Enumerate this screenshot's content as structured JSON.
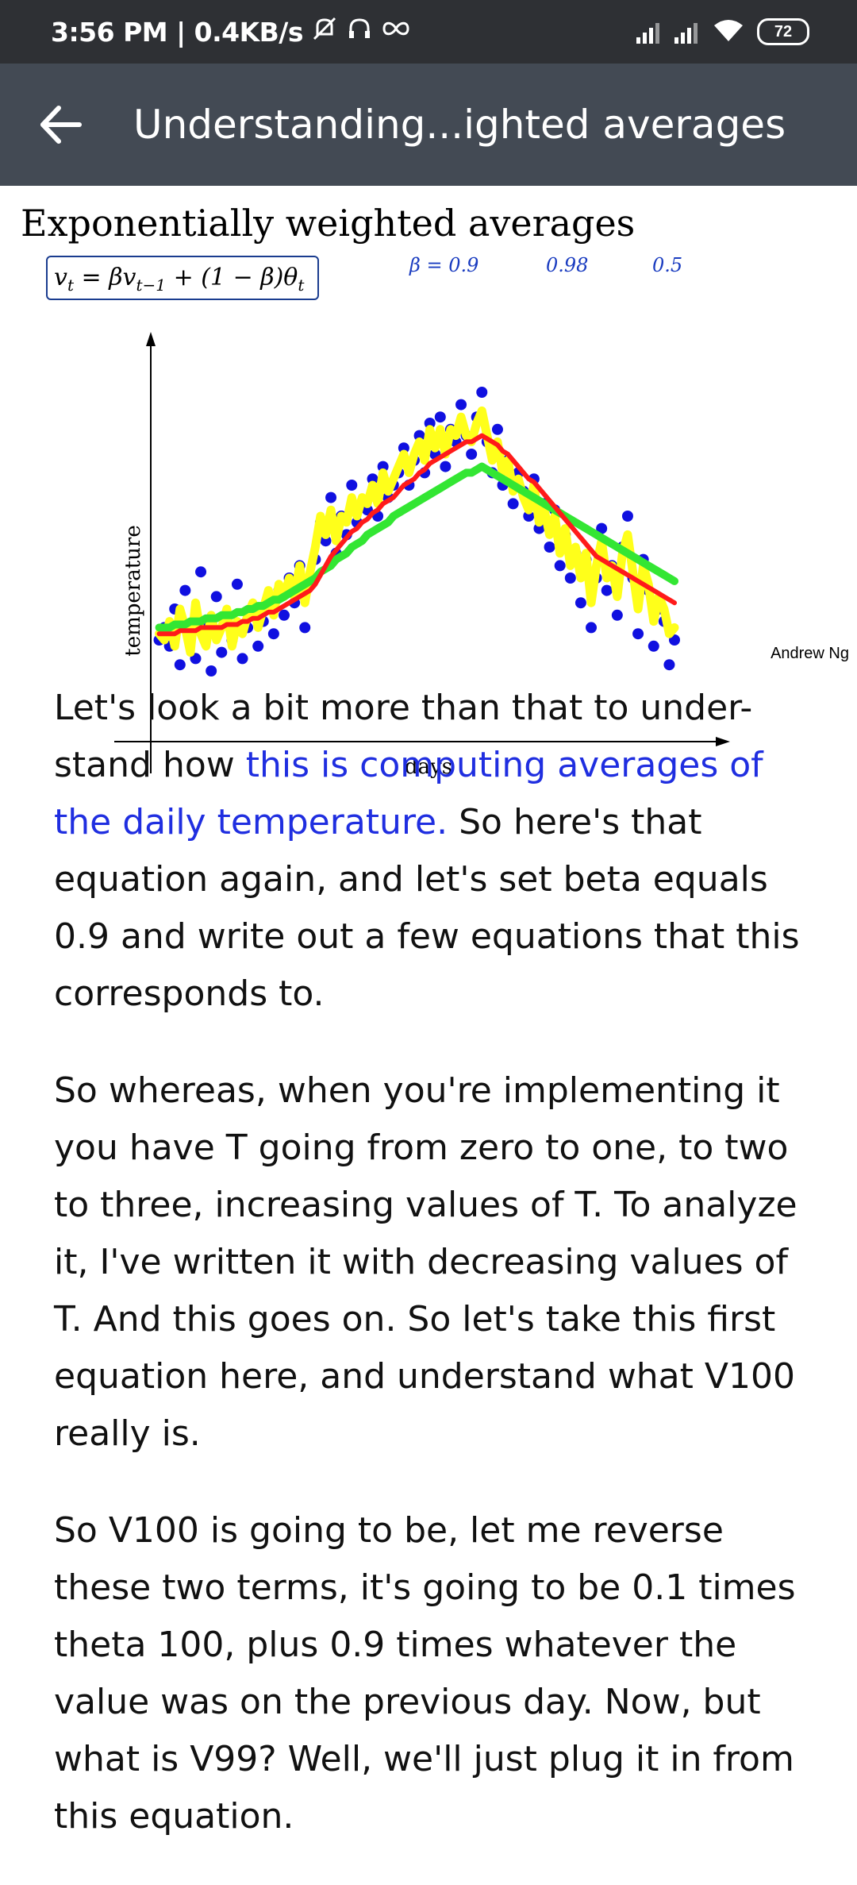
{
  "status_bar": {
    "time_speed": "3:56 PM | 0.4KB/s",
    "icons": [
      "mute-icon",
      "headphones-icon",
      "infinity-icon",
      "signal-icon",
      "signal-icon",
      "wifi-icon",
      "battery-icon"
    ],
    "battery": "72"
  },
  "app_bar": {
    "title": "Understanding...ighted averages",
    "back_icon": "arrow-left-icon"
  },
  "slide": {
    "title": "Exponentially weighted averages",
    "formula": {
      "lhs": "v",
      "lhs_sub": "t",
      "eq": " = βv",
      "sub2": "t−1",
      "rest": " + (1 − β)θ",
      "sub3": "t"
    },
    "handwritten_notes": [
      "β = 0.9",
      "0.98",
      "0.5"
    ],
    "credit": "Andrew Ng"
  },
  "chart_data": {
    "type": "scatter",
    "title": "",
    "xlabel": "days",
    "ylabel": "temperature",
    "xlim": [
      0,
      100
    ],
    "ylim": [
      0,
      100
    ],
    "grid": false,
    "series": [
      {
        "kind": "points",
        "color": "#1010e0",
        "x": [
          1,
          2,
          3,
          4,
          5,
          6,
          7,
          8,
          9,
          10,
          11,
          12,
          13,
          14,
          15,
          16,
          17,
          18,
          19,
          20,
          21,
          22,
          23,
          24,
          25,
          26,
          27,
          28,
          29,
          30,
          31,
          32,
          33,
          34,
          35,
          36,
          37,
          38,
          39,
          40,
          41,
          42,
          43,
          44,
          45,
          46,
          47,
          48,
          49,
          50,
          51,
          52,
          53,
          54,
          55,
          56,
          57,
          58,
          59,
          60,
          61,
          62,
          63,
          64,
          65,
          66,
          67,
          68,
          69,
          70,
          71,
          72,
          73,
          74,
          75,
          76,
          77,
          78,
          79,
          80,
          81,
          82,
          83,
          84,
          85,
          86,
          87,
          88,
          89,
          90,
          91,
          92,
          93,
          94,
          95,
          96,
          97,
          98,
          99,
          100
        ],
        "y": [
          20,
          24,
          18,
          30,
          12,
          36,
          22,
          14,
          42,
          26,
          10,
          34,
          16,
          28,
          20,
          38,
          14,
          24,
          30,
          18,
          26,
          34,
          22,
          36,
          28,
          40,
          32,
          44,
          24,
          38,
          46,
          58,
          52,
          66,
          48,
          60,
          54,
          70,
          58,
          64,
          62,
          72,
          60,
          76,
          66,
          70,
          74,
          82,
          70,
          78,
          86,
          74,
          90,
          80,
          92,
          76,
          88,
          84,
          96,
          86,
          80,
          92,
          100,
          84,
          74,
          88,
          70,
          78,
          64,
          74,
          68,
          60,
          72,
          56,
          64,
          50,
          62,
          44,
          54,
          40,
          48,
          32,
          46,
          24,
          40,
          56,
          36,
          44,
          28,
          50,
          60,
          40,
          22,
          46,
          36,
          18,
          30,
          26,
          12,
          20
        ]
      },
      {
        "kind": "line",
        "name": "",
        "color": "#ffff1a",
        "values": [
          22,
          20,
          26,
          18,
          30,
          24,
          16,
          32,
          22,
          18,
          28,
          20,
          24,
          30,
          18,
          26,
          22,
          28,
          32,
          24,
          30,
          36,
          28,
          38,
          34,
          40,
          34,
          44,
          32,
          42,
          50,
          60,
          54,
          62,
          52,
          60,
          58,
          66,
          60,
          66,
          64,
          70,
          64,
          74,
          68,
          72,
          76,
          80,
          74,
          80,
          84,
          78,
          88,
          82,
          88,
          80,
          88,
          86,
          92,
          86,
          84,
          90,
          94,
          86,
          78,
          84,
          74,
          78,
          68,
          72,
          66,
          62,
          70,
          58,
          62,
          54,
          60,
          48,
          56,
          44,
          50,
          40,
          48,
          32,
          44,
          52,
          40,
          44,
          34,
          48,
          54,
          42,
          30,
          44,
          38,
          26,
          34,
          30,
          22,
          24
        ]
      },
      {
        "kind": "line",
        "name": "",
        "color": "#ff1a1a",
        "values": [
          22,
          22,
          22,
          22,
          23,
          23,
          23,
          23,
          24,
          24,
          24,
          24,
          24,
          25,
          25,
          25,
          26,
          26,
          27,
          27,
          28,
          29,
          29,
          30,
          31,
          32,
          33,
          34,
          35,
          36,
          38,
          41,
          44,
          47,
          49,
          51,
          53,
          55,
          56,
          58,
          59,
          61,
          62,
          64,
          65,
          66,
          68,
          70,
          71,
          72,
          74,
          75,
          77,
          78,
          79,
          80,
          81,
          82,
          83,
          84,
          84,
          85,
          86,
          85,
          84,
          83,
          81,
          80,
          78,
          76,
          74,
          72,
          71,
          69,
          67,
          65,
          63,
          61,
          59,
          57,
          55,
          53,
          51,
          49,
          47,
          46,
          45,
          44,
          43,
          42,
          41,
          40,
          39,
          38,
          37,
          36,
          35,
          34,
          33,
          32
        ]
      },
      {
        "kind": "line",
        "name": "",
        "color": "#33e633",
        "values": [
          24,
          24,
          24,
          25,
          25,
          25,
          26,
          26,
          26,
          27,
          27,
          27,
          28,
          28,
          28,
          29,
          29,
          30,
          30,
          31,
          31,
          32,
          33,
          33,
          34,
          35,
          36,
          37,
          38,
          39,
          40,
          42,
          43,
          44,
          46,
          47,
          48,
          50,
          51,
          52,
          54,
          55,
          56,
          57,
          58,
          60,
          61,
          62,
          63,
          64,
          65,
          66,
          67,
          68,
          69,
          70,
          71,
          72,
          73,
          74,
          74,
          75,
          76,
          75,
          74,
          73,
          72,
          71,
          70,
          69,
          68,
          67,
          66,
          65,
          64,
          63,
          62,
          61,
          60,
          59,
          58,
          57,
          56,
          55,
          54,
          53,
          52,
          51,
          50,
          49,
          48,
          47,
          46,
          45,
          44,
          43,
          42,
          41,
          40,
          39
        ]
      }
    ]
  },
  "article": {
    "p1_a": "Let's look a bit more than that to under-stand how ",
    "p1_link": "this is computing averages of the daily temperature.",
    "p1_b": " So here's that equation again, and let's set beta equals 0.9 and write out a few equations that this corresponds to.",
    "p2": "So whereas, when you're implementing it you have T going from zero to one, to two to three, increasing values of T.  To analyze it, I've written it with decreasing values of T.  And this goes on. So let's take this first equation here, and understand what V100 really is.",
    "p3": "So V100 is going to be, let me reverse these two terms, it's going to be 0.1 times theta 100, plus 0.9 times whatever the value was on the previous day. Now, but what is V99? Well, we'll just plug it in from this equation."
  }
}
